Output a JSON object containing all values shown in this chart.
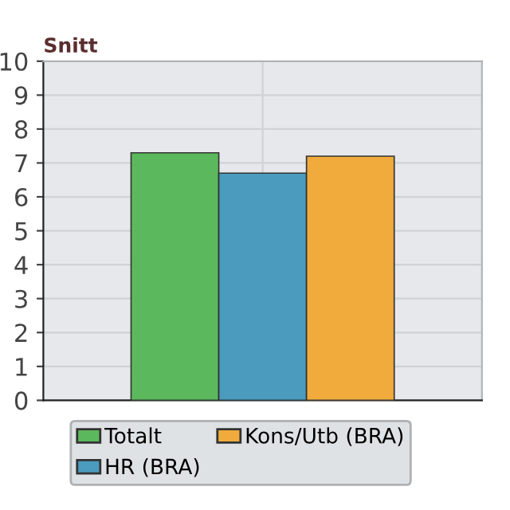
{
  "chart_data": {
    "type": "bar",
    "title": "Snitt",
    "categories": [
      null
    ],
    "series": [
      {
        "name": "Totalt",
        "color": "#5cb85c",
        "values": [
          7.3
        ]
      },
      {
        "name": "HR (BRA)",
        "color": "#4a9bbd",
        "values": [
          6.7
        ]
      },
      {
        "name": "Kons/Utb (BRA)",
        "color": "#f0ab3c",
        "values": [
          7.2
        ]
      }
    ],
    "ylim": [
      0,
      10
    ],
    "yticks": [
      0,
      1,
      2,
      3,
      4,
      5,
      6,
      7,
      8,
      9,
      10
    ],
    "grid": true,
    "legend": "bottom"
  }
}
